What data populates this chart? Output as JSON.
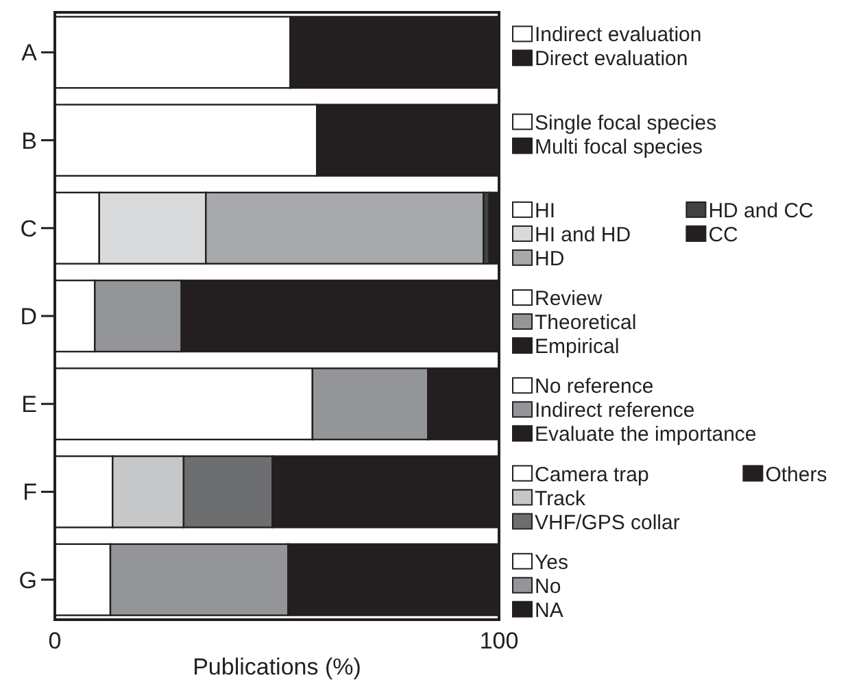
{
  "chart_data": {
    "type": "bar",
    "orientation": "horizontal",
    "stacked": true,
    "legend": "right",
    "xlabel": "Publications (%)",
    "xlim": [
      0,
      100
    ],
    "xticks": [
      0,
      100
    ],
    "categories": [
      "A",
      "B",
      "C",
      "D",
      "E",
      "F",
      "G"
    ],
    "series": [
      {
        "name": "Indirect evaluation",
        "color": "#ffffff",
        "values": [
          53,
          null,
          null,
          null,
          null,
          null,
          null
        ]
      },
      {
        "name": "Direct evaluation",
        "color": "#231f20",
        "values": [
          47,
          null,
          null,
          null,
          null,
          null,
          null
        ]
      },
      {
        "name": "Single focal species",
        "color": "#ffffff",
        "values": [
          null,
          59,
          null,
          null,
          null,
          null,
          null
        ]
      },
      {
        "name": "Multi focal species",
        "color": "#231f20",
        "values": [
          null,
          41,
          null,
          null,
          null,
          null,
          null
        ]
      },
      {
        "name": "HI",
        "color": "#ffffff",
        "values": [
          null,
          null,
          10,
          null,
          null,
          null,
          null
        ]
      },
      {
        "name": "HI and HD",
        "color": "#d9dadb",
        "values": [
          null,
          null,
          24,
          null,
          null,
          null,
          null
        ]
      },
      {
        "name": "HD",
        "color": "#a7a9ac",
        "values": [
          null,
          null,
          62.5,
          null,
          null,
          null,
          null
        ]
      },
      {
        "name": "HD and CC",
        "color": "#414042",
        "values": [
          null,
          null,
          1.3,
          null,
          null,
          null,
          null
        ]
      },
      {
        "name": "CC",
        "color": "#231f20",
        "values": [
          null,
          null,
          2.2,
          null,
          null,
          null,
          null
        ]
      },
      {
        "name": "Review",
        "color": "#ffffff",
        "values": [
          null,
          null,
          null,
          9,
          null,
          null,
          null
        ]
      },
      {
        "name": "Theoretical",
        "color": "#939598",
        "values": [
          null,
          null,
          null,
          19.5,
          null,
          null,
          null
        ]
      },
      {
        "name": "Empirical",
        "color": "#231f20",
        "values": [
          null,
          null,
          null,
          71.5,
          null,
          null,
          null
        ]
      },
      {
        "name": "No reference",
        "color": "#ffffff",
        "values": [
          null,
          null,
          null,
          null,
          58,
          null,
          null
        ]
      },
      {
        "name": "Indirect reference",
        "color": "#939598",
        "values": [
          null,
          null,
          null,
          null,
          26,
          null,
          null
        ]
      },
      {
        "name": "Evaluate the importance",
        "color": "#231f20",
        "values": [
          null,
          null,
          null,
          null,
          16,
          null,
          null
        ]
      },
      {
        "name": "Camera trap",
        "color": "#ffffff",
        "values": [
          null,
          null,
          null,
          null,
          null,
          13,
          null
        ]
      },
      {
        "name": "Track",
        "color": "#c6c7c8",
        "values": [
          null,
          null,
          null,
          null,
          null,
          16,
          null
        ]
      },
      {
        "name": "VHF/GPS collar",
        "color": "#6d6e70",
        "values": [
          null,
          null,
          null,
          null,
          null,
          20,
          null
        ]
      },
      {
        "name": "Others",
        "color": "#231f20",
        "values": [
          null,
          null,
          null,
          null,
          null,
          51,
          null
        ]
      },
      {
        "name": "Yes",
        "color": "#ffffff",
        "values": [
          null,
          null,
          null,
          null,
          null,
          null,
          12.5
        ]
      },
      {
        "name": "No",
        "color": "#939598",
        "values": [
          null,
          null,
          null,
          null,
          null,
          null,
          40
        ]
      },
      {
        "name": "NA",
        "color": "#231f20",
        "values": [
          null,
          null,
          null,
          null,
          null,
          null,
          47.5
        ]
      }
    ]
  }
}
